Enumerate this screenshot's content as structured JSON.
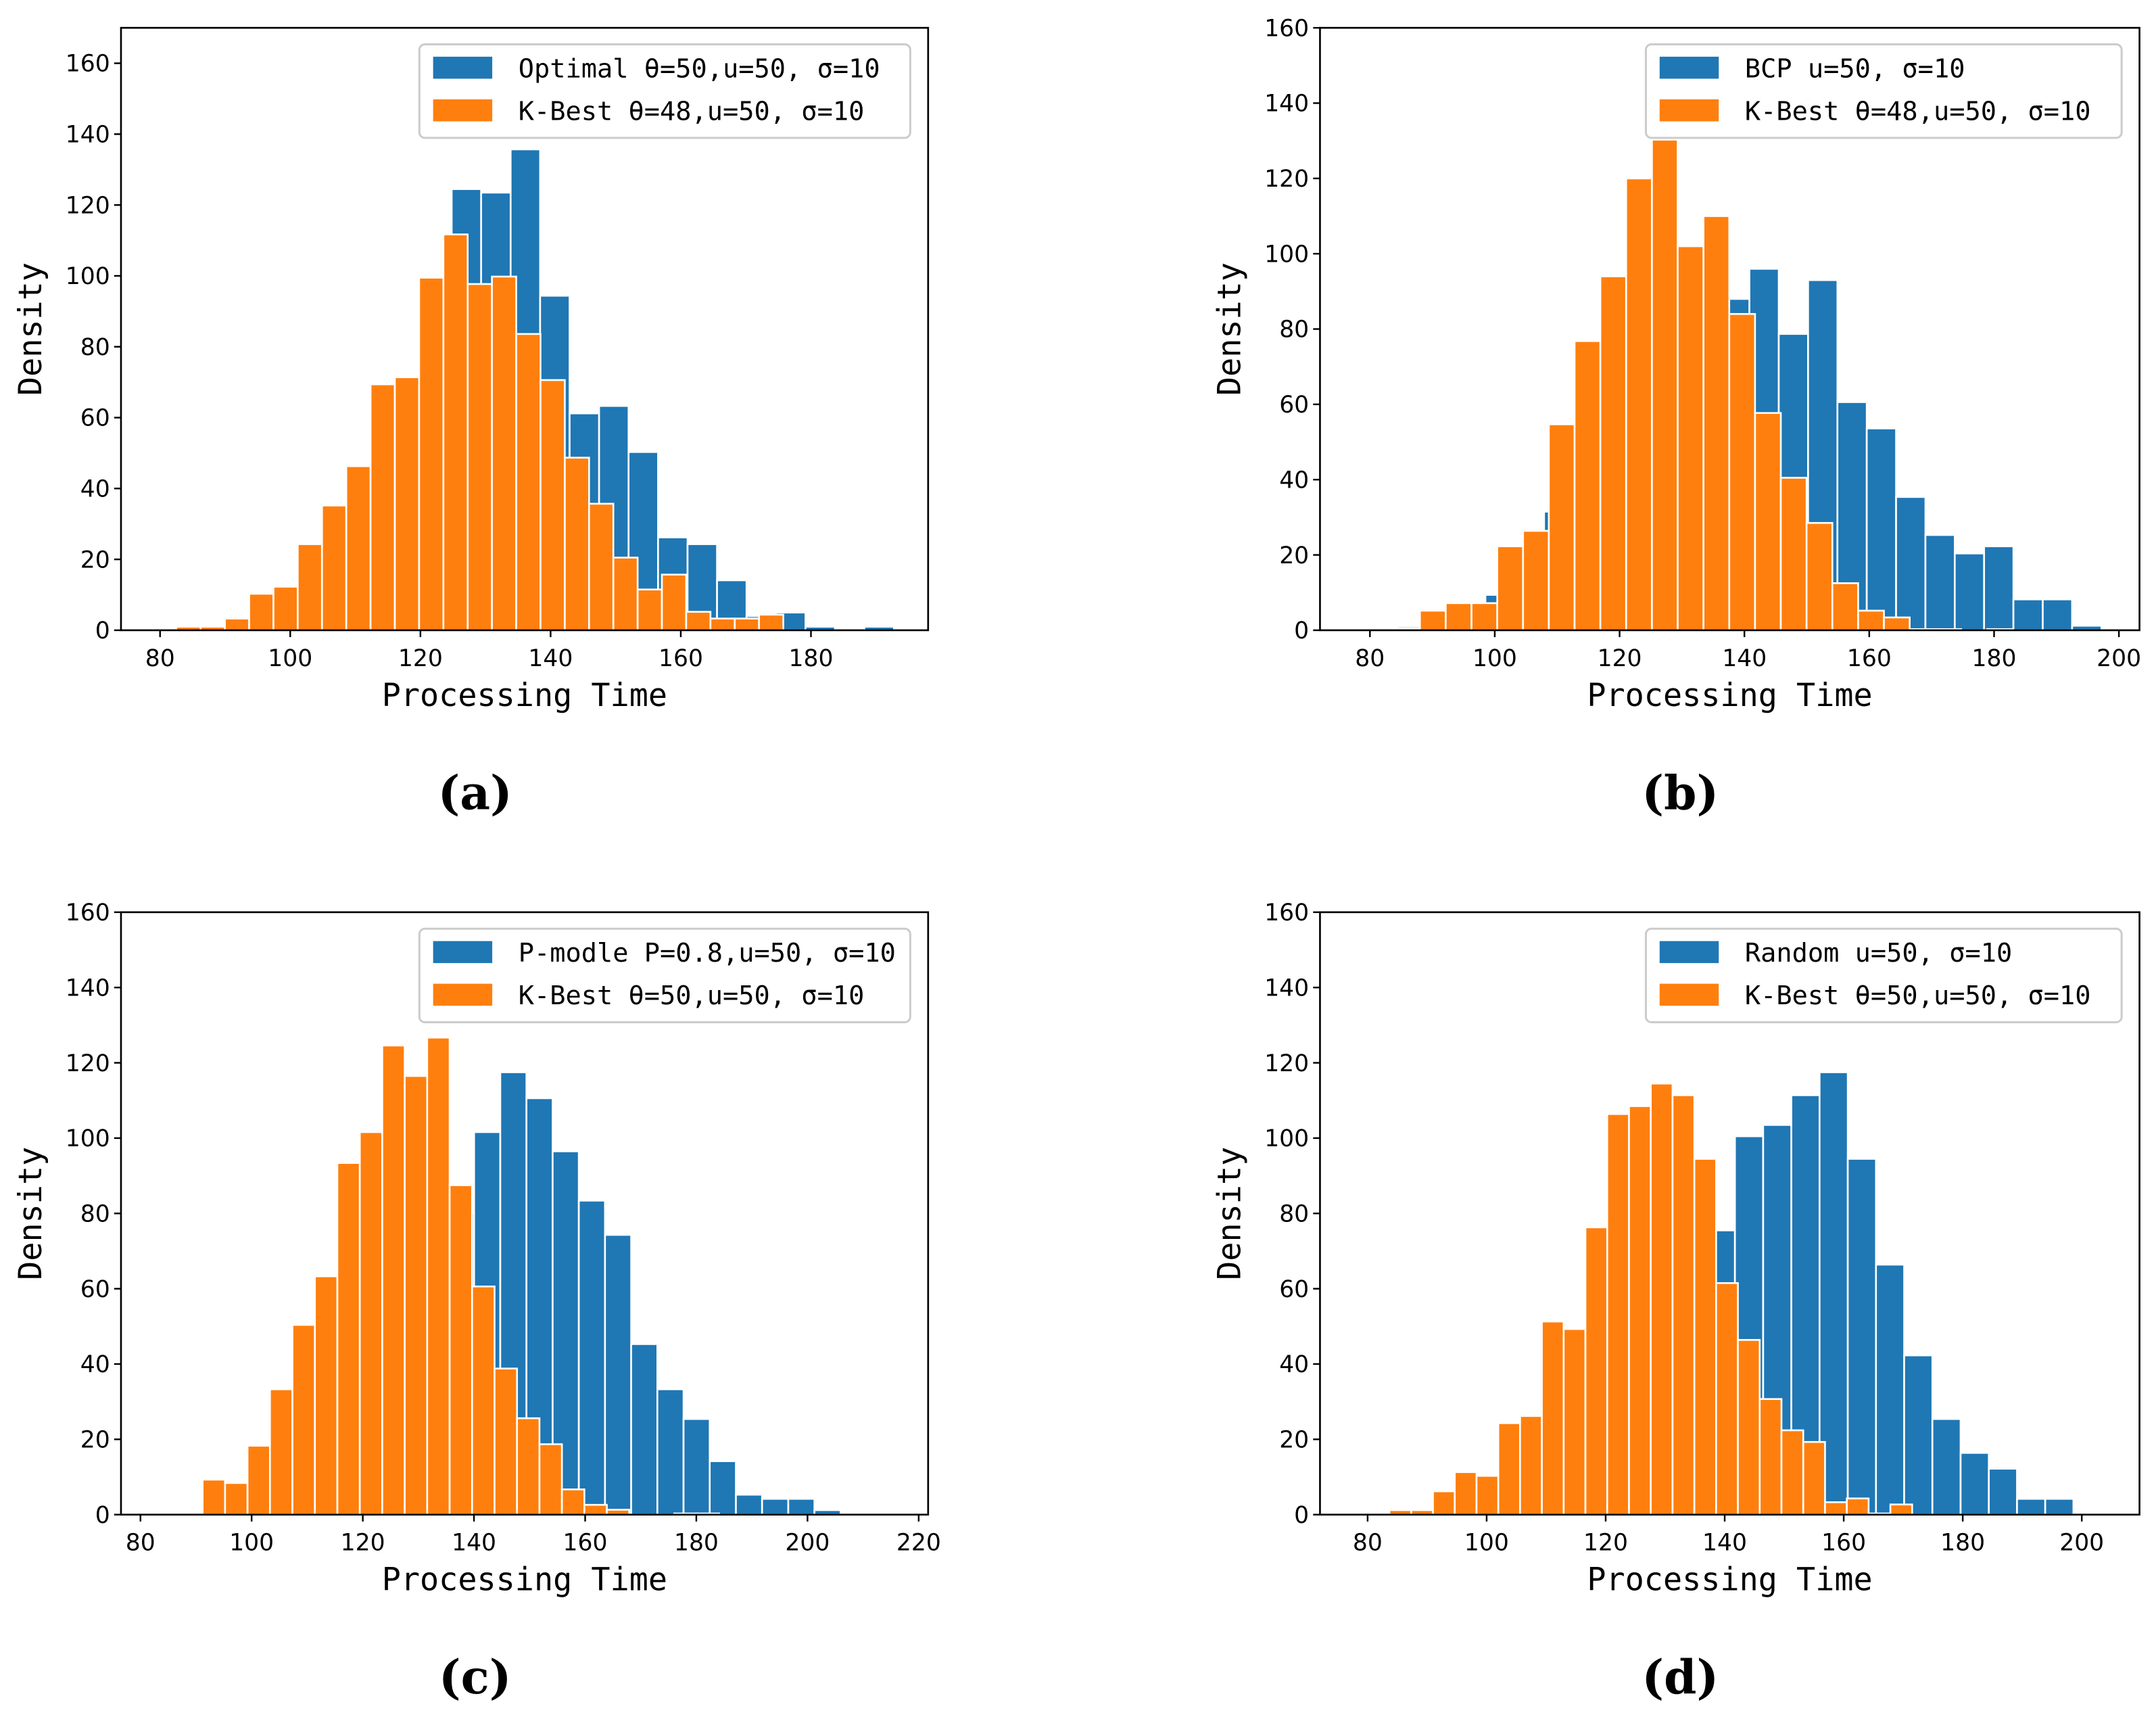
{
  "colors": {
    "blue": "#1f77b4",
    "orange": "#ff7f0e"
  },
  "chart_data": [
    {
      "type": "bar",
      "panel": "(a)",
      "xlabel": "Processing Time",
      "ylabel": "Density",
      "xlim": [
        74,
        198
      ],
      "ylim": [
        0,
        170
      ],
      "xticks": [
        80,
        100,
        120,
        140,
        160,
        180
      ],
      "yticks": [
        0,
        20,
        40,
        60,
        80,
        100,
        120,
        140,
        160
      ],
      "legend_position": "top-right",
      "series": [
        {
          "name": "Optimal  θ=50,u=50, σ=10",
          "color": "#1f77b4",
          "bin_start": 79.5,
          "bin_width": 4.53,
          "values": [
            0.5,
            0,
            1,
            2,
            5,
            9,
            18,
            32,
            55,
            90,
            124.5,
            123.5,
            135.7,
            94.4,
            61.2,
            63.3,
            50.3,
            26.2,
            24.3,
            14.1,
            4,
            5,
            1,
            0.2,
            1
          ]
        },
        {
          "name": "K-Best  θ=48,u=50, σ=10",
          "color": "#ff7f0e",
          "bin_start": 82.5,
          "bin_width": 3.73,
          "values": [
            1,
            1,
            3.3,
            10.3,
            12.3,
            24.3,
            35.2,
            46.3,
            69.4,
            71.4,
            99.5,
            111.7,
            97.7,
            99.8,
            83.6,
            70.6,
            48.7,
            35.7,
            20.5,
            11.5,
            15.7,
            5.2,
            3.3,
            3.3,
            4.4
          ]
        }
      ]
    },
    {
      "type": "bar",
      "panel": "(b)",
      "xlabel": "Processing Time",
      "ylabel": "Density",
      "xlim": [
        72,
        203.3
      ],
      "ylim": [
        0,
        160
      ],
      "xticks": [
        80,
        100,
        120,
        140,
        160,
        180,
        200
      ],
      "yticks": [
        0,
        20,
        40,
        60,
        80,
        100,
        120,
        140,
        160
      ],
      "legend_position": "top-right",
      "series": [
        {
          "name": "BCP u=50, σ=10",
          "color": "#1f77b4",
          "bin_start": 84.4,
          "bin_width": 4.7,
          "values": [
            1,
            0.5,
            2,
            9.4,
            15,
            31.5,
            45,
            60,
            75,
            85,
            80,
            88,
            96,
            78.7,
            93,
            60.6,
            53.6,
            35.4,
            25.3,
            20.4,
            22.3,
            8.2,
            8.2,
            1.2
          ]
        },
        {
          "name": "K-Best  θ=48,u=50, σ=10",
          "color": "#ff7f0e",
          "bin_start": 79.75,
          "bin_width": 4.13,
          "values": [
            0.5,
            0.5,
            5.2,
            7.2,
            7.2,
            22.3,
            26.4,
            54.7,
            76.8,
            94,
            120,
            130.3,
            102,
            110,
            84,
            57.7,
            40.5,
            28.5,
            12.5,
            5.2,
            3.4,
            0.3,
            0.3,
            0,
            0.3
          ]
        }
      ]
    },
    {
      "type": "bar",
      "panel": "(c)",
      "xlabel": "Processing Time",
      "ylabel": "Density",
      "xlim": [
        76.5,
        221.7
      ],
      "ylim": [
        0,
        160
      ],
      "xticks": [
        80,
        100,
        120,
        140,
        160,
        180,
        200,
        220
      ],
      "yticks": [
        0,
        20,
        40,
        60,
        80,
        100,
        120,
        140,
        160
      ],
      "legend_position": "top-right",
      "series": [
        {
          "name": "P-modle P=0.8,u=50, σ=10",
          "color": "#1f77b4",
          "bin_start": 83.5,
          "bin_width": 4.71,
          "values": [
            0,
            0,
            1,
            2,
            4,
            8,
            15,
            25,
            38,
            55,
            70,
            80,
            101.6,
            117.5,
            110.6,
            96.5,
            83.4,
            74.3,
            45.3,
            33.3,
            25.4,
            14.2,
            5.3,
            4.2,
            4.2,
            1.2,
            0,
            0.3
          ]
        },
        {
          "name": "K-Best  θ=50,u=50, σ=10",
          "color": "#ff7f0e",
          "bin_start": 83.1,
          "bin_width": 4.04,
          "values": [
            0.3,
            0,
            9.3,
            8.4,
            18.3,
            33.3,
            50.4,
            63.3,
            93.4,
            101.6,
            124.6,
            116.5,
            126.7,
            87.5,
            60.6,
            38.8,
            25.6,
            18.7,
            6.7,
            2.6,
            1.3,
            0,
            0,
            0.3,
            0.3
          ]
        }
      ]
    },
    {
      "type": "bar",
      "panel": "(d)",
      "xlabel": "Processing Time",
      "ylabel": "Density",
      "xlim": [
        72,
        209.7
      ],
      "ylim": [
        0,
        160
      ],
      "xticks": [
        80,
        100,
        120,
        140,
        160,
        180,
        200
      ],
      "yticks": [
        0,
        20,
        40,
        60,
        80,
        100,
        120,
        140,
        160
      ],
      "legend_position": "top-right",
      "series": [
        {
          "name": "Random u=50, σ=10",
          "color": "#1f77b4",
          "bin_start": 80.1,
          "bin_width": 4.74,
          "values": [
            0,
            0,
            1,
            2,
            4,
            8,
            14,
            22,
            35,
            48,
            60,
            70,
            75.5,
            100.5,
            103.5,
            111.4,
            117.5,
            94.5,
            66.4,
            42.3,
            25.4,
            16.4,
            12.2,
            4.2,
            4.2,
            0.3
          ]
        },
        {
          "name": "K-Best  θ=50,u=50, σ=10",
          "color": "#ff7f0e",
          "bin_start": 80,
          "bin_width": 3.66,
          "values": [
            0.3,
            1.2,
            1.2,
            6.2,
            11.3,
            10.3,
            24.3,
            26.2,
            51.3,
            49.3,
            76.3,
            106.4,
            108.5,
            114.5,
            111.4,
            94.5,
            61.5,
            46.4,
            30.7,
            22.4,
            19.3,
            3.3,
            4.3,
            0.3,
            2.7
          ]
        }
      ]
    }
  ]
}
